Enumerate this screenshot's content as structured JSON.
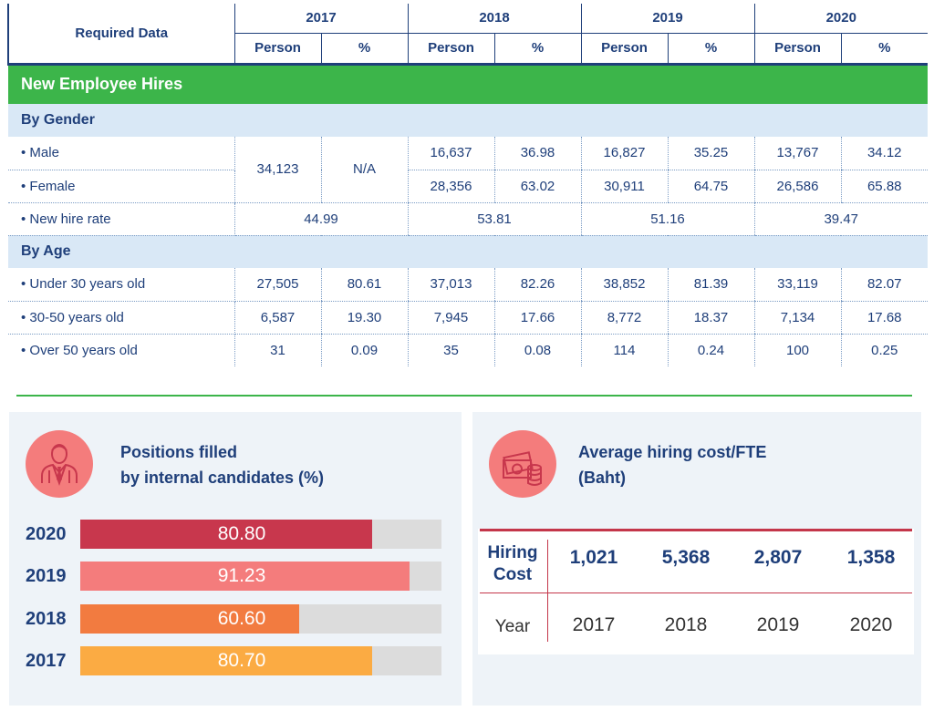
{
  "table": {
    "header_label": "Required Data",
    "years": [
      "2017",
      "2018",
      "2019",
      "2020"
    ],
    "sub_person": "Person",
    "sub_percent": "%",
    "section_title": "New Employee Hires",
    "cat_gender": "By Gender",
    "cat_age": "By Age",
    "rows": {
      "male": {
        "label": "• Male",
        "y2018": [
          "16,637",
          "36.98"
        ],
        "y2019": [
          "16,827",
          "35.25"
        ],
        "y2020": [
          "13,767",
          "34.12"
        ]
      },
      "female": {
        "label": "• Female",
        "y2018": [
          "28,356",
          "63.02"
        ],
        "y2019": [
          "30,911",
          "64.75"
        ],
        "y2020": [
          "26,586",
          "65.88"
        ]
      },
      "gender_2017": [
        "34,123",
        "N/A"
      ],
      "hire_rate": {
        "label": "• New hire rate",
        "values": [
          "44.99",
          "53.81",
          "51.16",
          "39.47"
        ]
      },
      "under30": {
        "label": "• Under 30 years old",
        "values": [
          "27,505",
          "80.61",
          "37,013",
          "82.26",
          "38,852",
          "81.39",
          "33,119",
          "82.07"
        ]
      },
      "age30_50": {
        "label": "• 30-50 years old",
        "values": [
          "6,587",
          "19.30",
          "7,945",
          "17.66",
          "8,772",
          "18.37",
          "7,134",
          "17.68"
        ]
      },
      "over50": {
        "label": "• Over 50 years old",
        "values": [
          "31",
          "0.09",
          "35",
          "0.08",
          "114",
          "0.24",
          "100",
          "0.25"
        ]
      }
    }
  },
  "internal": {
    "title_line1": "Positions filled",
    "title_line2": "by internal candidates (%)",
    "icon": "businessman-icon",
    "bars": [
      {
        "year": "2020",
        "value": "80.80",
        "fill_pct": 80.8,
        "color": "#c8374d"
      },
      {
        "year": "2019",
        "value": "91.23",
        "fill_pct": 91.23,
        "color": "#f47c7c"
      },
      {
        "year": "2018",
        "value": "60.60",
        "fill_pct": 60.6,
        "color": "#f27b40"
      },
      {
        "year": "2017",
        "value": "80.70",
        "fill_pct": 80.7,
        "color": "#fbab43"
      }
    ]
  },
  "cost": {
    "title_line1": "Average hiring cost/FTE",
    "title_line2": "(Baht)",
    "icon": "money-coins-icon",
    "row_label_line1": "Hiring",
    "row_label_line2": "Cost",
    "year_label": "Year",
    "values": [
      "1,021",
      "5,368",
      "2,807",
      "1,358"
    ],
    "years": [
      "2017",
      "2018",
      "2019",
      "2020"
    ]
  },
  "colors": {
    "navy": "#1f3f7a",
    "green": "#3cb54a",
    "light_blue": "#d9e8f6",
    "accent_red": "#c4364a"
  }
}
